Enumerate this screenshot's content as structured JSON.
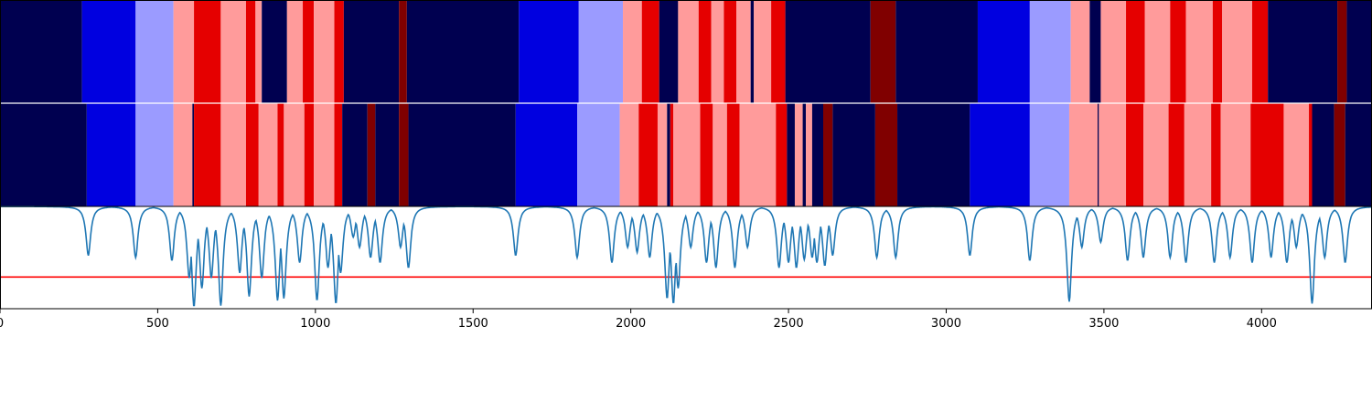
{
  "chart_data": {
    "type": "heatmap",
    "x_range": [
      0,
      4350
    ],
    "x_ticks": [
      0,
      500,
      1000,
      1500,
      2000,
      2500,
      3000,
      3500,
      4000
    ],
    "x_tick_labels": [
      "0",
      "500",
      "1000",
      "1500",
      "2000",
      "2500",
      "3000",
      "3500",
      "4000"
    ],
    "palette": {
      "0": "#000050",
      "1": "#0000e0",
      "2": "#9b9bff",
      "3": "#ff9b9b",
      "4": "#e50000",
      "5": "#800000"
    },
    "rows": [
      {
        "segments": [
          [
            0,
            260,
            0
          ],
          [
            260,
            430,
            1
          ],
          [
            430,
            550,
            2
          ],
          [
            550,
            615,
            3
          ],
          [
            615,
            700,
            4
          ],
          [
            700,
            780,
            3
          ],
          [
            780,
            810,
            4
          ],
          [
            810,
            830,
            3
          ],
          [
            830,
            910,
            0
          ],
          [
            910,
            960,
            3
          ],
          [
            960,
            995,
            4
          ],
          [
            995,
            1060,
            3
          ],
          [
            1060,
            1090,
            4
          ],
          [
            1090,
            1265,
            0
          ],
          [
            1265,
            1290,
            5
          ],
          [
            1290,
            1645,
            0
          ],
          [
            1645,
            1835,
            1
          ],
          [
            1835,
            1975,
            2
          ],
          [
            1975,
            2035,
            3
          ],
          [
            2035,
            2090,
            4
          ],
          [
            2090,
            2150,
            0
          ],
          [
            2150,
            2215,
            3
          ],
          [
            2215,
            2255,
            4
          ],
          [
            2255,
            2295,
            3
          ],
          [
            2295,
            2335,
            4
          ],
          [
            2335,
            2380,
            3
          ],
          [
            2380,
            2390,
            0
          ],
          [
            2390,
            2445,
            3
          ],
          [
            2445,
            2490,
            4
          ],
          [
            2490,
            2760,
            0
          ],
          [
            2760,
            2840,
            5
          ],
          [
            2840,
            3100,
            0
          ],
          [
            3100,
            3265,
            1
          ],
          [
            3265,
            3395,
            2
          ],
          [
            3395,
            3455,
            3
          ],
          [
            3455,
            3490,
            0
          ],
          [
            3490,
            3570,
            3
          ],
          [
            3570,
            3630,
            4
          ],
          [
            3630,
            3710,
            3
          ],
          [
            3710,
            3760,
            4
          ],
          [
            3760,
            3845,
            3
          ],
          [
            3845,
            3875,
            4
          ],
          [
            3875,
            3970,
            3
          ],
          [
            3970,
            4020,
            4
          ],
          [
            4020,
            4240,
            0
          ],
          [
            4240,
            4270,
            5
          ],
          [
            4270,
            4350,
            0
          ]
        ]
      },
      {
        "segments": [
          [
            0,
            275,
            0
          ],
          [
            275,
            430,
            1
          ],
          [
            430,
            550,
            2
          ],
          [
            550,
            610,
            3
          ],
          [
            610,
            615,
            0
          ],
          [
            615,
            700,
            4
          ],
          [
            700,
            780,
            3
          ],
          [
            780,
            820,
            4
          ],
          [
            820,
            880,
            3
          ],
          [
            880,
            900,
            4
          ],
          [
            900,
            965,
            3
          ],
          [
            965,
            995,
            4
          ],
          [
            995,
            1060,
            3
          ],
          [
            1060,
            1085,
            4
          ],
          [
            1085,
            1165,
            0
          ],
          [
            1165,
            1190,
            5
          ],
          [
            1190,
            1265,
            0
          ],
          [
            1265,
            1295,
            5
          ],
          [
            1295,
            1635,
            0
          ],
          [
            1635,
            1830,
            1
          ],
          [
            1830,
            1965,
            2
          ],
          [
            1965,
            2025,
            3
          ],
          [
            2025,
            2085,
            4
          ],
          [
            2085,
            2115,
            3
          ],
          [
            2115,
            2125,
            0
          ],
          [
            2125,
            2135,
            4
          ],
          [
            2135,
            2220,
            3
          ],
          [
            2220,
            2260,
            4
          ],
          [
            2260,
            2305,
            3
          ],
          [
            2305,
            2345,
            4
          ],
          [
            2345,
            2460,
            3
          ],
          [
            2460,
            2495,
            4
          ],
          [
            2495,
            2520,
            0
          ],
          [
            2520,
            2545,
            3
          ],
          [
            2545,
            2555,
            0
          ],
          [
            2555,
            2575,
            3
          ],
          [
            2575,
            2610,
            0
          ],
          [
            2610,
            2640,
            5
          ],
          [
            2640,
            2775,
            0
          ],
          [
            2775,
            2845,
            5
          ],
          [
            2845,
            3075,
            0
          ],
          [
            3075,
            3265,
            1
          ],
          [
            3265,
            3390,
            2
          ],
          [
            3390,
            3480,
            3
          ],
          [
            3480,
            3484,
            0
          ],
          [
            3484,
            3570,
            3
          ],
          [
            3570,
            3625,
            4
          ],
          [
            3625,
            3705,
            3
          ],
          [
            3705,
            3755,
            4
          ],
          [
            3755,
            3840,
            3
          ],
          [
            3840,
            3870,
            4
          ],
          [
            3870,
            3965,
            3
          ],
          [
            3965,
            4070,
            4
          ],
          [
            4070,
            4150,
            3
          ],
          [
            4150,
            4160,
            4
          ],
          [
            4160,
            4230,
            0
          ],
          [
            4230,
            4265,
            5
          ],
          [
            4265,
            4350,
            0
          ]
        ]
      }
    ],
    "line": {
      "color": "#1f77b4",
      "y_range": [
        0,
        1
      ],
      "baseline": 1.0,
      "dips": [
        [
          280,
          0.52
        ],
        [
          430,
          0.5
        ],
        [
          545,
          0.47
        ],
        [
          600,
          0.3
        ],
        [
          615,
          0.02
        ],
        [
          640,
          0.2
        ],
        [
          670,
          0.3
        ],
        [
          700,
          0.03
        ],
        [
          760,
          0.35
        ],
        [
          790,
          0.12
        ],
        [
          830,
          0.3
        ],
        [
          880,
          0.08
        ],
        [
          900,
          0.1
        ],
        [
          950,
          0.45
        ],
        [
          1005,
          0.08
        ],
        [
          1040,
          0.4
        ],
        [
          1065,
          0.05
        ],
        [
          1080,
          0.35
        ],
        [
          1120,
          0.7
        ],
        [
          1140,
          0.6
        ],
        [
          1175,
          0.5
        ],
        [
          1205,
          0.45
        ],
        [
          1270,
          0.6
        ],
        [
          1295,
          0.4
        ],
        [
          1635,
          0.52
        ],
        [
          1830,
          0.5
        ],
        [
          1940,
          0.45
        ],
        [
          1990,
          0.6
        ],
        [
          2020,
          0.55
        ],
        [
          2060,
          0.5
        ],
        [
          2115,
          0.1
        ],
        [
          2135,
          0.05
        ],
        [
          2150,
          0.2
        ],
        [
          2190,
          0.6
        ],
        [
          2240,
          0.45
        ],
        [
          2270,
          0.4
        ],
        [
          2330,
          0.4
        ],
        [
          2370,
          0.6
        ],
        [
          2470,
          0.4
        ],
        [
          2500,
          0.45
        ],
        [
          2525,
          0.4
        ],
        [
          2550,
          0.48
        ],
        [
          2575,
          0.5
        ],
        [
          2590,
          0.45
        ],
        [
          2615,
          0.42
        ],
        [
          2640,
          0.52
        ],
        [
          2780,
          0.5
        ],
        [
          2840,
          0.5
        ],
        [
          3075,
          0.52
        ],
        [
          3265,
          0.47
        ],
        [
          3390,
          0.07
        ],
        [
          3430,
          0.6
        ],
        [
          3490,
          0.65
        ],
        [
          3575,
          0.47
        ],
        [
          3625,
          0.5
        ],
        [
          3710,
          0.5
        ],
        [
          3760,
          0.45
        ],
        [
          3850,
          0.45
        ],
        [
          3900,
          0.5
        ],
        [
          3970,
          0.45
        ],
        [
          4030,
          0.5
        ],
        [
          4080,
          0.45
        ],
        [
          4110,
          0.6
        ],
        [
          4160,
          0.05
        ],
        [
          4200,
          0.5
        ],
        [
          4265,
          0.45
        ]
      ]
    },
    "threshold": {
      "y": 0.31,
      "color": "#ff0000"
    }
  }
}
